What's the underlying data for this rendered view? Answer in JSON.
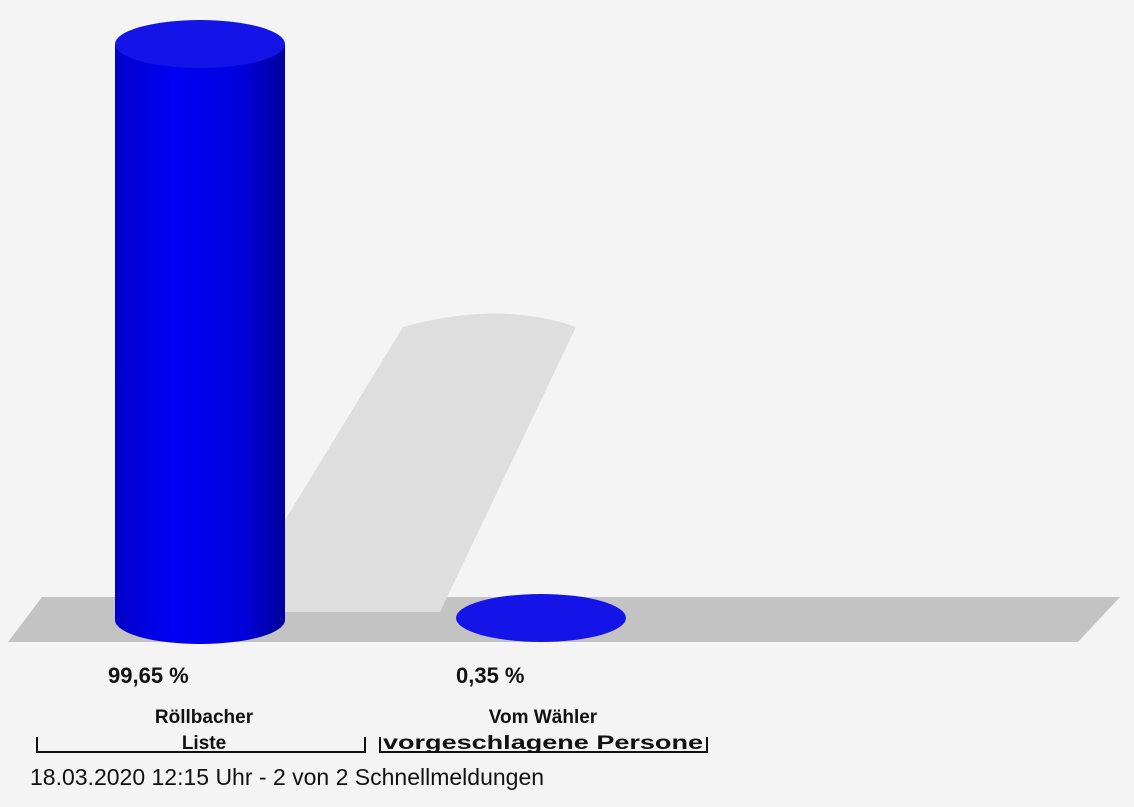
{
  "chart_data": {
    "type": "bar",
    "style": "3d-cylinder",
    "unit": "%",
    "series": [
      {
        "values": [
          99.65,
          0.35
        ],
        "value_labels": [
          "99,65 %",
          "0,35 %"
        ],
        "colors": [
          "#0000ee",
          "#00eeee"
        ]
      }
    ],
    "categories": [
      {
        "lines": [
          "Röllbacher",
          "Liste"
        ]
      },
      {
        "lines": [
          "Vom Wähler",
          "vorgeschlagene Persone"
        ]
      }
    ],
    "ylim": [
      0,
      100
    ],
    "grid": false
  },
  "footer": "18.03.2020 12:15 Uhr - 2 von 2 Schnellmeldungen",
  "colors": {
    "background": "#f4f4f4",
    "floor": "#c3c3c3",
    "shadow": "#dedede"
  }
}
